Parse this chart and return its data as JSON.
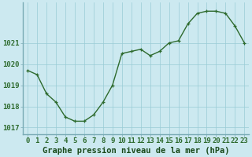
{
  "x": [
    0,
    1,
    2,
    3,
    4,
    5,
    6,
    7,
    8,
    9,
    10,
    11,
    12,
    13,
    14,
    15,
    16,
    17,
    18,
    19,
    20,
    21,
    22,
    23
  ],
  "y": [
    1019.7,
    1019.5,
    1018.6,
    1018.2,
    1017.5,
    1017.3,
    1017.3,
    1017.6,
    1018.2,
    1019.0,
    1020.5,
    1020.6,
    1020.7,
    1020.4,
    1020.6,
    1021.0,
    1021.1,
    1021.9,
    1022.4,
    1022.5,
    1022.5,
    1022.4,
    1021.8,
    1021.0
  ],
  "line_color": "#2d6a2d",
  "marker_color": "#2d6a2d",
  "bg_color": "#cce9f0",
  "grid_color": "#99ccd6",
  "border_color": "#7aabb5",
  "xlabel": "Graphe pression niveau de la mer (hPa)",
  "xlabel_color": "#1a4a1a",
  "ylabel_ticks": [
    1017,
    1018,
    1019,
    1020,
    1021
  ],
  "ytick_color": "#2d6a2d",
  "xtick_color": "#2d6a2d",
  "ylim": [
    1016.7,
    1022.9
  ],
  "xlim": [
    -0.5,
    23.5
  ],
  "tick_fontsize": 6.5,
  "xlabel_fontsize": 7.5
}
